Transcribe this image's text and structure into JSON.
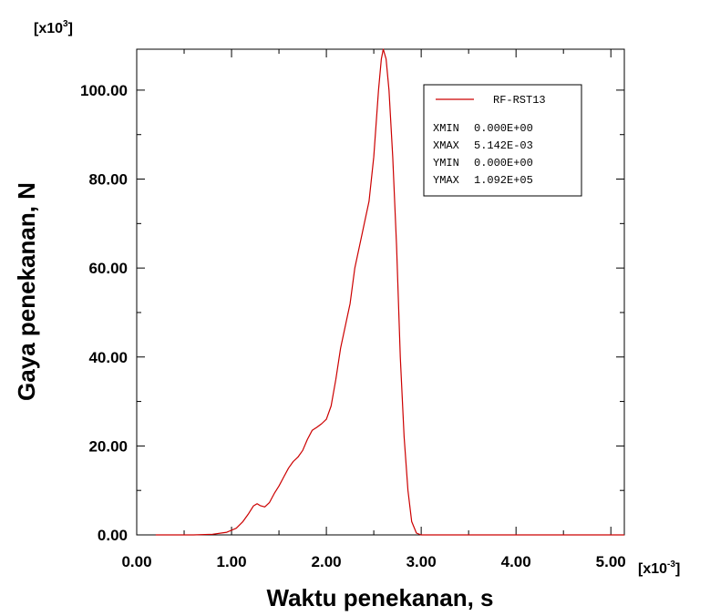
{
  "chart_data": {
    "type": "line",
    "xlabel": "Waktu penekanan, s",
    "ylabel": "Gaya penekanan, N",
    "x_multiplier": {
      "base": "[x10",
      "exp": "-3",
      "close": "]"
    },
    "y_multiplier": {
      "base": "[x10",
      "exp": "3",
      "close": "]"
    },
    "xlim": [
      0,
      5.142
    ],
    "ylim": [
      0,
      109.2
    ],
    "x_ticks": [
      {
        "value": 0,
        "label": "0.00"
      },
      {
        "value": 1,
        "label": "1.00"
      },
      {
        "value": 2,
        "label": "2.00"
      },
      {
        "value": 3,
        "label": "3.00"
      },
      {
        "value": 4,
        "label": "4.00"
      },
      {
        "value": 5,
        "label": "5.00"
      }
    ],
    "y_ticks": [
      {
        "value": 0,
        "label": "0.00"
      },
      {
        "value": 20,
        "label": "20.00"
      },
      {
        "value": 40,
        "label": "40.00"
      },
      {
        "value": 60,
        "label": "60.00"
      },
      {
        "value": 80,
        "label": "80.00"
      },
      {
        "value": 100,
        "label": "100.00"
      }
    ],
    "grid": false,
    "legend_position": "top-right",
    "series": [
      {
        "name": "RF-RST13",
        "color": "#cc0000",
        "points": [
          [
            0.2,
            0.0
          ],
          [
            0.6,
            0.0
          ],
          [
            0.8,
            0.15
          ],
          [
            0.95,
            0.6
          ],
          [
            1.05,
            1.5
          ],
          [
            1.12,
            3.0
          ],
          [
            1.18,
            4.8
          ],
          [
            1.23,
            6.5
          ],
          [
            1.27,
            7.0
          ],
          [
            1.3,
            6.6
          ],
          [
            1.35,
            6.3
          ],
          [
            1.4,
            7.3
          ],
          [
            1.45,
            9.3
          ],
          [
            1.5,
            11.0
          ],
          [
            1.55,
            13.0
          ],
          [
            1.6,
            15.0
          ],
          [
            1.65,
            16.5
          ],
          [
            1.7,
            17.5
          ],
          [
            1.75,
            19.0
          ],
          [
            1.8,
            21.5
          ],
          [
            1.85,
            23.5
          ],
          [
            1.9,
            24.2
          ],
          [
            1.95,
            25.0
          ],
          [
            2.0,
            26.0
          ],
          [
            2.05,
            29.0
          ],
          [
            2.1,
            35.0
          ],
          [
            2.15,
            42.0
          ],
          [
            2.2,
            47.0
          ],
          [
            2.25,
            52.0
          ],
          [
            2.3,
            60.0
          ],
          [
            2.35,
            65.0
          ],
          [
            2.4,
            70.0
          ],
          [
            2.45,
            75.0
          ],
          [
            2.5,
            85.0
          ],
          [
            2.55,
            100.0
          ],
          [
            2.58,
            107.0
          ],
          [
            2.6,
            109.2
          ],
          [
            2.63,
            107.0
          ],
          [
            2.66,
            100.0
          ],
          [
            2.7,
            85.0
          ],
          [
            2.74,
            65.0
          ],
          [
            2.78,
            40.0
          ],
          [
            2.82,
            22.0
          ],
          [
            2.86,
            10.0
          ],
          [
            2.9,
            3.0
          ],
          [
            2.95,
            0.4
          ],
          [
            3.0,
            0.0
          ],
          [
            4.0,
            0.0
          ],
          [
            5.142,
            0.0
          ]
        ]
      }
    ],
    "legend_stats": [
      {
        "key": "XMIN",
        "value": "0.000E+00"
      },
      {
        "key": "XMAX",
        "value": "5.142E-03"
      },
      {
        "key": "YMIN",
        "value": "0.000E+00"
      },
      {
        "key": "YMAX",
        "value": "1.092E+05"
      }
    ]
  }
}
